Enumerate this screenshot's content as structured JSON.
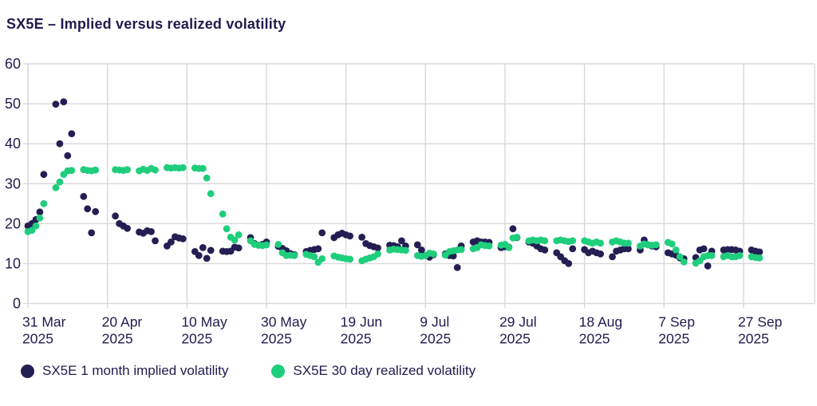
{
  "header": {
    "title": "SX5E – Implied versus realized volatility"
  },
  "colors": {
    "implied": "#231f53",
    "realized": "#1fce7c",
    "grid": "#d9d9d9",
    "axis_text": "#1f1b4e",
    "background": "#ffffff"
  },
  "legend": {
    "items": [
      {
        "label": "SX5E 1 month implied volatility",
        "color": "#231f53"
      },
      {
        "label": "SX5E 30 day realized volatility",
        "color": "#1fce7c"
      }
    ]
  },
  "chart_data": {
    "type": "scatter",
    "title": "SX5E – Implied versus realized volatility",
    "xlabel": "",
    "ylabel": "",
    "ylim": [
      0,
      60
    ],
    "y_ticks": [
      0,
      10,
      20,
      30,
      40,
      50,
      60
    ],
    "grid": true,
    "legend_position": "bottom",
    "x_ticks": [
      {
        "date": "2025-03-31",
        "label": "31 Mar",
        "year": "2025"
      },
      {
        "date": "2025-04-20",
        "label": "20 Apr",
        "year": "2025"
      },
      {
        "date": "2025-05-10",
        "label": "10 May",
        "year": "2025"
      },
      {
        "date": "2025-05-30",
        "label": "30 May",
        "year": "2025"
      },
      {
        "date": "2025-06-19",
        "label": "19 Jun",
        "year": "2025"
      },
      {
        "date": "2025-07-09",
        "label": "9 Jul",
        "year": "2025"
      },
      {
        "date": "2025-07-29",
        "label": "29 Jul",
        "year": "2025"
      },
      {
        "date": "2025-08-18",
        "label": "18 Aug",
        "year": "2025"
      },
      {
        "date": "2025-09-07",
        "label": "7 Sep",
        "year": "2025"
      },
      {
        "date": "2025-09-27",
        "label": "27 Sep",
        "year": "2025"
      }
    ],
    "series": [
      {
        "name": "SX5E 1 month implied volatility",
        "color": "#231f53",
        "points": [
          [
            "2025-03-31",
            19.4
          ],
          [
            "2025-04-01",
            20.0
          ],
          [
            "2025-04-02",
            21.0
          ],
          [
            "2025-04-03",
            22.9
          ],
          [
            "2025-04-04",
            32.3
          ],
          [
            "2025-04-07",
            49.9
          ],
          [
            "2025-04-08",
            40.0
          ],
          [
            "2025-04-09",
            50.5
          ],
          [
            "2025-04-10",
            37.0
          ],
          [
            "2025-04-11",
            42.5
          ],
          [
            "2025-04-14",
            26.8
          ],
          [
            "2025-04-15",
            23.7
          ],
          [
            "2025-04-16",
            17.7
          ],
          [
            "2025-04-17",
            23.0
          ],
          [
            "2025-04-22",
            21.9
          ],
          [
            "2025-04-23",
            20.0
          ],
          [
            "2025-04-24",
            19.4
          ],
          [
            "2025-04-25",
            18.8
          ],
          [
            "2025-04-28",
            17.9
          ],
          [
            "2025-04-29",
            17.6
          ],
          [
            "2025-04-30",
            18.2
          ],
          [
            "2025-05-01",
            18.0
          ],
          [
            "2025-05-02",
            15.7
          ],
          [
            "2025-05-05",
            14.4
          ],
          [
            "2025-05-06",
            15.4
          ],
          [
            "2025-05-07",
            16.7
          ],
          [
            "2025-05-08",
            16.4
          ],
          [
            "2025-05-09",
            16.2
          ],
          [
            "2025-05-12",
            13.0
          ],
          [
            "2025-05-13",
            12.0
          ],
          [
            "2025-05-14",
            14.0
          ],
          [
            "2025-05-15",
            11.3
          ],
          [
            "2025-05-16",
            13.3
          ],
          [
            "2025-05-19",
            13.1
          ],
          [
            "2025-05-20",
            13.0
          ],
          [
            "2025-05-21",
            13.1
          ],
          [
            "2025-05-22",
            14.1
          ],
          [
            "2025-05-23",
            13.9
          ],
          [
            "2025-05-26",
            16.5
          ],
          [
            "2025-05-27",
            15.0
          ],
          [
            "2025-05-28",
            14.6
          ],
          [
            "2025-05-29",
            14.8
          ],
          [
            "2025-05-30",
            15.4
          ],
          [
            "2025-06-02",
            14.3
          ],
          [
            "2025-06-03",
            13.8
          ],
          [
            "2025-06-04",
            13.2
          ],
          [
            "2025-06-05",
            12.5
          ],
          [
            "2025-06-06",
            12.2
          ],
          [
            "2025-06-09",
            13.0
          ],
          [
            "2025-06-10",
            13.3
          ],
          [
            "2025-06-11",
            13.5
          ],
          [
            "2025-06-12",
            13.7
          ],
          [
            "2025-06-13",
            17.7
          ],
          [
            "2025-06-16",
            16.5
          ],
          [
            "2025-06-17",
            17.2
          ],
          [
            "2025-06-18",
            17.6
          ],
          [
            "2025-06-19",
            17.2
          ],
          [
            "2025-06-20",
            16.9
          ],
          [
            "2025-06-23",
            16.6
          ],
          [
            "2025-06-24",
            15.0
          ],
          [
            "2025-06-25",
            14.5
          ],
          [
            "2025-06-26",
            14.2
          ],
          [
            "2025-06-27",
            13.9
          ],
          [
            "2025-06-30",
            14.6
          ],
          [
            "2025-07-01",
            14.5
          ],
          [
            "2025-07-02",
            14.2
          ],
          [
            "2025-07-03",
            15.7
          ],
          [
            "2025-07-04",
            14.4
          ],
          [
            "2025-07-07",
            14.7
          ],
          [
            "2025-07-08",
            13.4
          ],
          [
            "2025-07-09",
            12.0
          ],
          [
            "2025-07-10",
            11.6
          ],
          [
            "2025-07-11",
            12.2
          ],
          [
            "2025-07-14",
            12.4
          ],
          [
            "2025-07-15",
            12.0
          ],
          [
            "2025-07-16",
            11.9
          ],
          [
            "2025-07-17",
            9.0
          ],
          [
            "2025-07-18",
            14.4
          ],
          [
            "2025-07-21",
            15.4
          ],
          [
            "2025-07-22",
            15.7
          ],
          [
            "2025-07-23",
            15.4
          ],
          [
            "2025-07-24",
            15.4
          ],
          [
            "2025-07-25",
            15.3
          ],
          [
            "2025-07-28",
            14.0
          ],
          [
            "2025-07-29",
            14.2
          ],
          [
            "2025-07-30",
            14.1
          ],
          [
            "2025-07-31",
            18.7
          ],
          [
            "2025-08-01",
            16.5
          ],
          [
            "2025-08-04",
            15.4
          ],
          [
            "2025-08-05",
            15.1
          ],
          [
            "2025-08-06",
            14.4
          ],
          [
            "2025-08-07",
            13.7
          ],
          [
            "2025-08-08",
            13.4
          ],
          [
            "2025-08-11",
            12.7
          ],
          [
            "2025-08-12",
            11.7
          ],
          [
            "2025-08-13",
            10.7
          ],
          [
            "2025-08-14",
            10.0
          ],
          [
            "2025-08-15",
            13.7
          ],
          [
            "2025-08-18",
            13.5
          ],
          [
            "2025-08-19",
            12.7
          ],
          [
            "2025-08-20",
            13.1
          ],
          [
            "2025-08-21",
            12.7
          ],
          [
            "2025-08-22",
            12.4
          ],
          [
            "2025-08-25",
            11.7
          ],
          [
            "2025-08-26",
            13.1
          ],
          [
            "2025-08-27",
            13.4
          ],
          [
            "2025-08-28",
            13.7
          ],
          [
            "2025-08-29",
            13.7
          ],
          [
            "2025-09-01",
            13.4
          ],
          [
            "2025-09-02",
            15.9
          ],
          [
            "2025-09-03",
            14.7
          ],
          [
            "2025-09-04",
            14.4
          ],
          [
            "2025-09-05",
            14.2
          ],
          [
            "2025-09-08",
            12.7
          ],
          [
            "2025-09-09",
            12.4
          ],
          [
            "2025-09-10",
            12.1
          ],
          [
            "2025-09-11",
            11.4
          ],
          [
            "2025-09-12",
            11.2
          ],
          [
            "2025-09-15",
            11.5
          ],
          [
            "2025-09-16",
            13.4
          ],
          [
            "2025-09-17",
            13.7
          ],
          [
            "2025-09-18",
            9.4
          ],
          [
            "2025-09-19",
            13.1
          ],
          [
            "2025-09-22",
            13.4
          ],
          [
            "2025-09-23",
            13.5
          ],
          [
            "2025-09-24",
            13.5
          ],
          [
            "2025-09-25",
            13.4
          ],
          [
            "2025-09-26",
            13.1
          ],
          [
            "2025-09-29",
            13.4
          ],
          [
            "2025-09-30",
            13.1
          ],
          [
            "2025-10-01",
            12.9
          ]
        ]
      },
      {
        "name": "SX5E 30 day realized volatility",
        "color": "#1fce7c",
        "points": [
          [
            "2025-03-31",
            18.0
          ],
          [
            "2025-04-01",
            18.3
          ],
          [
            "2025-04-02",
            19.4
          ],
          [
            "2025-04-03",
            21.4
          ],
          [
            "2025-04-04",
            25.0
          ],
          [
            "2025-04-07",
            29.0
          ],
          [
            "2025-04-08",
            30.4
          ],
          [
            "2025-04-09",
            32.3
          ],
          [
            "2025-04-10",
            33.2
          ],
          [
            "2025-04-11",
            33.3
          ],
          [
            "2025-04-14",
            33.5
          ],
          [
            "2025-04-15",
            33.3
          ],
          [
            "2025-04-16",
            33.2
          ],
          [
            "2025-04-17",
            33.4
          ],
          [
            "2025-04-22",
            33.5
          ],
          [
            "2025-04-23",
            33.4
          ],
          [
            "2025-04-24",
            33.3
          ],
          [
            "2025-04-25",
            33.5
          ],
          [
            "2025-04-28",
            33.2
          ],
          [
            "2025-04-29",
            33.6
          ],
          [
            "2025-04-30",
            33.3
          ],
          [
            "2025-05-01",
            33.8
          ],
          [
            "2025-05-02",
            33.4
          ],
          [
            "2025-05-05",
            34.0
          ],
          [
            "2025-05-06",
            33.9
          ],
          [
            "2025-05-07",
            34.0
          ],
          [
            "2025-05-08",
            33.9
          ],
          [
            "2025-05-09",
            34.0
          ],
          [
            "2025-05-12",
            33.9
          ],
          [
            "2025-05-13",
            33.8
          ],
          [
            "2025-05-14",
            33.8
          ],
          [
            "2025-05-15",
            31.4
          ],
          [
            "2025-05-16",
            27.5
          ],
          [
            "2025-05-19",
            22.4
          ],
          [
            "2025-05-20",
            18.7
          ],
          [
            "2025-05-21",
            16.6
          ],
          [
            "2025-05-22",
            15.9
          ],
          [
            "2025-05-23",
            17.2
          ],
          [
            "2025-05-26",
            15.7
          ],
          [
            "2025-05-27",
            14.8
          ],
          [
            "2025-05-28",
            14.6
          ],
          [
            "2025-05-29",
            14.5
          ],
          [
            "2025-05-30",
            14.7
          ],
          [
            "2025-06-02",
            14.8
          ],
          [
            "2025-06-03",
            12.7
          ],
          [
            "2025-06-04",
            12.0
          ],
          [
            "2025-06-05",
            12.1
          ],
          [
            "2025-06-06",
            12.0
          ],
          [
            "2025-06-09",
            12.3
          ],
          [
            "2025-06-10",
            12.0
          ],
          [
            "2025-06-11",
            11.7
          ],
          [
            "2025-06-12",
            10.3
          ],
          [
            "2025-06-13",
            11.2
          ],
          [
            "2025-06-16",
            11.9
          ],
          [
            "2025-06-17",
            11.6
          ],
          [
            "2025-06-18",
            11.4
          ],
          [
            "2025-06-19",
            11.2
          ],
          [
            "2025-06-20",
            11.1
          ],
          [
            "2025-06-23",
            10.7
          ],
          [
            "2025-06-24",
            11.1
          ],
          [
            "2025-06-25",
            11.4
          ],
          [
            "2025-06-26",
            11.7
          ],
          [
            "2025-06-27",
            12.4
          ],
          [
            "2025-06-30",
            13.4
          ],
          [
            "2025-07-01",
            13.6
          ],
          [
            "2025-07-02",
            13.5
          ],
          [
            "2025-07-03",
            13.4
          ],
          [
            "2025-07-04",
            13.3
          ],
          [
            "2025-07-07",
            12.0
          ],
          [
            "2025-07-08",
            11.8
          ],
          [
            "2025-07-09",
            12.0
          ],
          [
            "2025-07-10",
            12.6
          ],
          [
            "2025-07-11",
            12.4
          ],
          [
            "2025-07-14",
            12.1
          ],
          [
            "2025-07-15",
            13.0
          ],
          [
            "2025-07-16",
            13.2
          ],
          [
            "2025-07-17",
            13.4
          ],
          [
            "2025-07-18",
            13.5
          ],
          [
            "2025-07-21",
            13.7
          ],
          [
            "2025-07-22",
            14.0
          ],
          [
            "2025-07-23",
            14.7
          ],
          [
            "2025-07-24",
            14.5
          ],
          [
            "2025-07-25",
            14.4
          ],
          [
            "2025-07-28",
            14.6
          ],
          [
            "2025-07-29",
            14.8
          ],
          [
            "2025-07-30",
            14.0
          ],
          [
            "2025-07-31",
            16.4
          ],
          [
            "2025-08-01",
            16.6
          ],
          [
            "2025-08-04",
            15.7
          ],
          [
            "2025-08-05",
            15.9
          ],
          [
            "2025-08-06",
            15.7
          ],
          [
            "2025-08-07",
            15.9
          ],
          [
            "2025-08-08",
            15.7
          ],
          [
            "2025-08-11",
            15.7
          ],
          [
            "2025-08-12",
            15.9
          ],
          [
            "2025-08-13",
            15.7
          ],
          [
            "2025-08-14",
            15.5
          ],
          [
            "2025-08-15",
            15.7
          ],
          [
            "2025-08-18",
            15.7
          ],
          [
            "2025-08-19",
            15.4
          ],
          [
            "2025-08-20",
            15.1
          ],
          [
            "2025-08-21",
            15.4
          ],
          [
            "2025-08-22",
            15.1
          ],
          [
            "2025-08-25",
            15.4
          ],
          [
            "2025-08-26",
            15.7
          ],
          [
            "2025-08-27",
            15.4
          ],
          [
            "2025-08-28",
            15.1
          ],
          [
            "2025-08-29",
            15.1
          ],
          [
            "2025-09-01",
            14.4
          ],
          [
            "2025-09-02",
            14.9
          ],
          [
            "2025-09-03",
            14.7
          ],
          [
            "2025-09-04",
            14.6
          ],
          [
            "2025-09-05",
            14.7
          ],
          [
            "2025-09-08",
            15.3
          ],
          [
            "2025-09-09",
            14.9
          ],
          [
            "2025-09-10",
            13.4
          ],
          [
            "2025-09-11",
            11.7
          ],
          [
            "2025-09-12",
            10.4
          ],
          [
            "2025-09-15",
            10.1
          ],
          [
            "2025-09-16",
            10.7
          ],
          [
            "2025-09-17",
            11.7
          ],
          [
            "2025-09-18",
            12.0
          ],
          [
            "2025-09-19",
            12.0
          ],
          [
            "2025-09-22",
            11.7
          ],
          [
            "2025-09-23",
            12.0
          ],
          [
            "2025-09-24",
            11.7
          ],
          [
            "2025-09-25",
            11.7
          ],
          [
            "2025-09-26",
            12.0
          ],
          [
            "2025-09-29",
            11.7
          ],
          [
            "2025-09-30",
            11.5
          ],
          [
            "2025-10-01",
            11.4
          ]
        ]
      }
    ]
  }
}
